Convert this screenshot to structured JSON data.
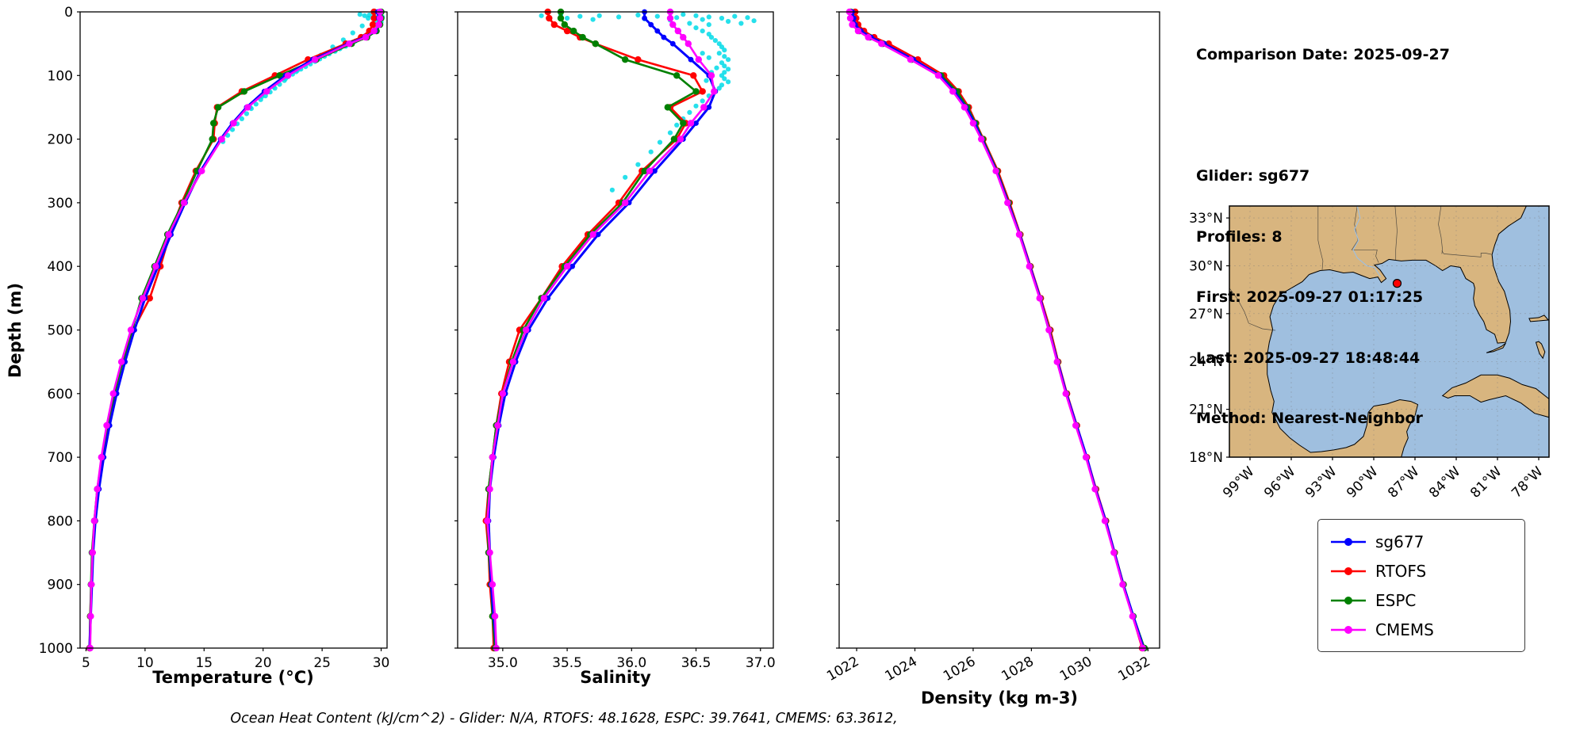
{
  "info_panel": {
    "lines": [
      "Comparison Date: 2025-09-27",
      "",
      "Glider: sg677",
      "Profiles: 8",
      "First: 2025-09-27 01:17:25",
      "Last: 2025-09-27 18:48:44",
      "Method: Nearest-Neighbor"
    ]
  },
  "caption": "Ocean Heat Content (kJ/cm^2) - Glider: N/A,  RTOFS: 48.1628,  ESPC: 39.7641,  CMEMS: 63.3612,",
  "ocean_heat_content": {
    "glider": "N/A",
    "RTOFS": 48.1628,
    "ESPC": 39.7641,
    "CMEMS": 63.3612
  },
  "legend": {
    "items": [
      {
        "label": "sg677",
        "color": "#0000ff"
      },
      {
        "label": "RTOFS",
        "color": "#ff0000"
      },
      {
        "label": "ESPC",
        "color": "#008000"
      },
      {
        "label": "CMEMS",
        "color": "#ff00ff"
      }
    ]
  },
  "depth_axis": {
    "label": "Depth (m)",
    "lim": [
      0,
      1000
    ],
    "ticks": [
      0,
      100,
      200,
      300,
      400,
      500,
      600,
      700,
      800,
      900,
      1000
    ]
  },
  "map": {
    "extent": {
      "lon": [
        -100.5,
        -77.25
      ],
      "lat": [
        18,
        33.75
      ]
    },
    "colors": {
      "land": "#d8b57f",
      "water": "#9fbfdf",
      "coast": "#000000",
      "border": "#333333",
      "river": "#9fbfdf"
    },
    "lat_ticks": [
      {
        "label": "33°N",
        "value": 33
      },
      {
        "label": "30°N",
        "value": 30
      },
      {
        "label": "27°N",
        "value": 27
      },
      {
        "label": "24°N",
        "value": 24
      },
      {
        "label": "21°N",
        "value": 21
      },
      {
        "label": "18°N",
        "value": 18
      }
    ],
    "lon_ticks": [
      {
        "label": "99°W",
        "value": -99
      },
      {
        "label": "96°W",
        "value": -96
      },
      {
        "label": "93°W",
        "value": -93
      },
      {
        "label": "90°W",
        "value": -90
      },
      {
        "label": "87°W",
        "value": -87
      },
      {
        "label": "84°W",
        "value": -84
      },
      {
        "label": "81°W",
        "value": -81
      },
      {
        "label": "78°W",
        "value": -78
      }
    ],
    "marker": {
      "lon": -88.3,
      "lat": 28.9,
      "color": "#ff0000"
    }
  },
  "chart_data": [
    {
      "type": "line",
      "xlabel": "Temperature (°C)",
      "xlim": [
        4.5,
        30.5
      ],
      "xticks": [
        5,
        10,
        15,
        20,
        25,
        30
      ],
      "xtick_labels": [
        "5",
        "10",
        "15",
        "20",
        "25",
        "30"
      ],
      "xtick_rotation": 0,
      "depth_lim": [
        0,
        1000
      ],
      "depths": [
        0,
        10,
        20,
        30,
        40,
        50,
        75,
        100,
        125,
        150,
        175,
        200,
        250,
        300,
        350,
        400,
        450,
        500,
        550,
        600,
        650,
        700,
        750,
        800,
        850,
        900,
        950,
        1000
      ],
      "series": [
        {
          "name": "sg677",
          "color": "#0000ff",
          "values": [
            29.7,
            29.8,
            29.8,
            29.5,
            28.6,
            27.2,
            24.2,
            21.9,
            20.1,
            18.6,
            17.4,
            16.4,
            14.7,
            13.4,
            12.2,
            11.1,
            10.0,
            9.1,
            8.3,
            7.6,
            7.0,
            6.5,
            6.1,
            5.8,
            5.6,
            5.5,
            5.4,
            5.3
          ]
        },
        {
          "name": "RTOFS",
          "color": "#ff0000",
          "values": [
            29.4,
            29.4,
            29.3,
            29.0,
            28.3,
            27.0,
            23.8,
            21.0,
            18.2,
            16.1,
            15.9,
            15.8,
            14.3,
            13.1,
            12.1,
            11.3,
            10.4,
            9.0,
            8.1,
            7.4,
            6.9,
            6.4,
            6.0,
            5.75,
            5.55,
            5.45,
            5.35,
            5.3
          ]
        },
        {
          "name": "ESPC",
          "color": "#008000",
          "values": [
            30.0,
            30.0,
            29.9,
            29.6,
            28.8,
            27.5,
            24.5,
            21.4,
            18.4,
            16.2,
            15.8,
            15.7,
            14.4,
            13.2,
            11.9,
            10.8,
            9.7,
            8.9,
            8.1,
            7.4,
            6.8,
            6.35,
            5.95,
            5.7,
            5.5,
            5.42,
            5.36,
            5.32
          ]
        },
        {
          "name": "CMEMS",
          "color": "#ff00ff",
          "values": [
            29.9,
            29.9,
            29.8,
            29.4,
            28.7,
            27.3,
            24.4,
            22.1,
            20.3,
            18.7,
            17.5,
            16.5,
            14.8,
            13.3,
            12.0,
            10.9,
            9.8,
            8.8,
            8.0,
            7.3,
            6.75,
            6.3,
            5.95,
            5.7,
            5.55,
            5.45,
            5.4,
            5.35
          ]
        }
      ],
      "scatter": {
        "name": "glider-raw",
        "color": "#00dbe8",
        "points": [
          [
            28.2,
            4
          ],
          [
            28.6,
            6
          ],
          [
            29.0,
            5
          ],
          [
            29.4,
            7
          ],
          [
            29.8,
            6
          ],
          [
            30.1,
            8
          ],
          [
            29.9,
            12
          ],
          [
            30.0,
            16
          ],
          [
            29.8,
            20
          ],
          [
            29.6,
            25
          ],
          [
            29.3,
            30
          ],
          [
            29.0,
            34
          ],
          [
            28.6,
            38
          ],
          [
            28.2,
            42
          ],
          [
            27.8,
            46
          ],
          [
            27.4,
            50
          ],
          [
            27.0,
            54
          ],
          [
            26.5,
            58
          ],
          [
            26.1,
            62
          ],
          [
            25.6,
            66
          ],
          [
            25.2,
            70
          ],
          [
            24.8,
            74
          ],
          [
            24.4,
            78
          ],
          [
            24.0,
            82
          ],
          [
            23.6,
            86
          ],
          [
            23.2,
            90
          ],
          [
            22.8,
            94
          ],
          [
            22.5,
            98
          ],
          [
            22.1,
            102
          ],
          [
            21.8,
            108
          ],
          [
            21.4,
            114
          ],
          [
            21.0,
            120
          ],
          [
            20.6,
            126
          ],
          [
            20.2,
            132
          ],
          [
            19.8,
            138
          ],
          [
            19.4,
            145
          ],
          [
            19.0,
            152
          ],
          [
            18.6,
            160
          ],
          [
            18.2,
            168
          ],
          [
            17.8,
            176
          ],
          [
            17.4,
            185
          ],
          [
            17.0,
            194
          ],
          [
            16.6,
            204
          ],
          [
            28.9,
            10
          ],
          [
            29.5,
            15
          ],
          [
            28.4,
            22
          ],
          [
            27.6,
            33
          ],
          [
            26.8,
            44
          ],
          [
            25.9,
            55
          ],
          [
            24.9,
            68
          ],
          [
            23.8,
            80
          ],
          [
            22.9,
            92
          ],
          [
            21.9,
            105
          ],
          [
            20.9,
            118
          ],
          [
            19.9,
            133
          ],
          [
            18.9,
            150
          ]
        ]
      }
    },
    {
      "type": "line",
      "xlabel": "Salinity",
      "xlim": [
        34.65,
        37.1
      ],
      "xticks": [
        35.0,
        35.5,
        36.0,
        36.5,
        37.0
      ],
      "xtick_labels": [
        "35.0",
        "35.5",
        "36.0",
        "36.5",
        "37.0"
      ],
      "xtick_rotation": 0,
      "depth_lim": [
        0,
        1000
      ],
      "depths": [
        0,
        10,
        20,
        30,
        40,
        50,
        75,
        100,
        125,
        150,
        175,
        200,
        250,
        300,
        350,
        400,
        450,
        500,
        550,
        600,
        650,
        700,
        750,
        800,
        850,
        900,
        950,
        1000
      ],
      "series": [
        {
          "name": "sg677",
          "color": "#0000ff",
          "values": [
            36.1,
            36.1,
            36.15,
            36.2,
            36.25,
            36.32,
            36.46,
            36.6,
            36.65,
            36.6,
            36.5,
            36.4,
            36.18,
            35.98,
            35.74,
            35.54,
            35.35,
            35.2,
            35.1,
            35.02,
            34.97,
            34.93,
            34.9,
            34.89,
            34.9,
            34.91,
            34.93,
            34.95
          ]
        },
        {
          "name": "RTOFS",
          "color": "#ff0000",
          "values": [
            35.35,
            35.36,
            35.4,
            35.5,
            35.6,
            35.72,
            36.05,
            36.48,
            36.55,
            36.3,
            36.42,
            36.35,
            36.08,
            35.9,
            35.66,
            35.46,
            35.3,
            35.13,
            35.05,
            34.99,
            34.95,
            34.92,
            34.89,
            34.87,
            34.89,
            34.9,
            34.92,
            34.93
          ]
        },
        {
          "name": "ESPC",
          "color": "#008000",
          "values": [
            35.45,
            35.45,
            35.48,
            35.55,
            35.62,
            35.72,
            35.95,
            36.35,
            36.5,
            36.28,
            36.4,
            36.33,
            36.1,
            35.93,
            35.68,
            35.48,
            35.3,
            35.16,
            35.07,
            35.0,
            34.95,
            34.92,
            34.89,
            34.88,
            34.89,
            34.91,
            34.92,
            34.94
          ]
        },
        {
          "name": "CMEMS",
          "color": "#ff00ff",
          "values": [
            36.3,
            36.3,
            36.32,
            36.36,
            36.4,
            36.44,
            36.52,
            36.62,
            36.64,
            36.56,
            36.46,
            36.38,
            36.14,
            35.95,
            35.7,
            35.5,
            35.32,
            35.18,
            35.08,
            35.0,
            34.96,
            34.92,
            34.9,
            34.88,
            34.9,
            34.92,
            34.94,
            34.95
          ]
        }
      ],
      "scatter": {
        "name": "glider-raw",
        "color": "#00dbe8",
        "points": [
          [
            35.3,
            6
          ],
          [
            35.45,
            5
          ],
          [
            35.6,
            7
          ],
          [
            35.75,
            6
          ],
          [
            35.9,
            8
          ],
          [
            36.05,
            5
          ],
          [
            36.2,
            7
          ],
          [
            36.35,
            9
          ],
          [
            36.5,
            6
          ],
          [
            36.6,
            8
          ],
          [
            36.7,
            10
          ],
          [
            36.8,
            7
          ],
          [
            36.9,
            9
          ],
          [
            36.95,
            14
          ],
          [
            36.4,
            4
          ],
          [
            35.5,
            10
          ],
          [
            35.7,
            12
          ],
          [
            36.1,
            11
          ],
          [
            36.3,
            13
          ],
          [
            36.55,
            12
          ],
          [
            36.75,
            15
          ],
          [
            36.85,
            18
          ],
          [
            36.6,
            20
          ],
          [
            36.45,
            18
          ],
          [
            36.5,
            25
          ],
          [
            36.55,
            30
          ],
          [
            36.6,
            35
          ],
          [
            36.62,
            40
          ],
          [
            36.65,
            45
          ],
          [
            36.68,
            50
          ],
          [
            36.7,
            55
          ],
          [
            36.72,
            60
          ],
          [
            36.68,
            65
          ],
          [
            36.72,
            70
          ],
          [
            36.75,
            75
          ],
          [
            36.7,
            80
          ],
          [
            36.72,
            85
          ],
          [
            36.75,
            90
          ],
          [
            36.72,
            95
          ],
          [
            36.7,
            100
          ],
          [
            36.72,
            105
          ],
          [
            36.75,
            110
          ],
          [
            36.7,
            115
          ],
          [
            36.68,
            120
          ],
          [
            36.65,
            125
          ],
          [
            36.6,
            132
          ],
          [
            36.55,
            140
          ],
          [
            36.5,
            148
          ],
          [
            36.45,
            158
          ],
          [
            36.4,
            168
          ],
          [
            36.35,
            178
          ],
          [
            36.3,
            190
          ],
          [
            36.22,
            205
          ],
          [
            36.15,
            220
          ],
          [
            36.05,
            240
          ],
          [
            35.95,
            260
          ],
          [
            35.85,
            280
          ],
          [
            36.55,
            65
          ],
          [
            36.6,
            72
          ],
          [
            36.62,
            95
          ],
          [
            36.58,
            108
          ],
          [
            36.66,
            88
          ]
        ]
      }
    },
    {
      "type": "line",
      "xlabel": "Density (kg m-3)",
      "xlim": [
        1021.4,
        1032.4
      ],
      "xticks": [
        1022,
        1024,
        1026,
        1028,
        1030,
        1032
      ],
      "xtick_labels": [
        "1022",
        "1024",
        "1026",
        "1028",
        "1030",
        "1032"
      ],
      "xtick_rotation": 30,
      "depth_lim": [
        0,
        1000
      ],
      "depths": [
        0,
        10,
        20,
        30,
        40,
        50,
        75,
        100,
        125,
        150,
        175,
        200,
        250,
        300,
        350,
        400,
        450,
        500,
        550,
        600,
        650,
        700,
        750,
        800,
        850,
        900,
        950,
        1000
      ],
      "series": [
        {
          "name": "sg677",
          "color": "#0000ff",
          "values": [
            1021.85,
            1021.9,
            1021.95,
            1022.15,
            1022.5,
            1022.95,
            1023.95,
            1024.85,
            1025.35,
            1025.75,
            1026.05,
            1026.3,
            1026.8,
            1027.2,
            1027.6,
            1027.95,
            1028.3,
            1028.6,
            1028.9,
            1029.2,
            1029.55,
            1029.9,
            1030.2,
            1030.55,
            1030.85,
            1031.15,
            1031.5,
            1031.85
          ]
        },
        {
          "name": "RTOFS",
          "color": "#ff0000",
          "values": [
            1021.95,
            1021.98,
            1022.05,
            1022.25,
            1022.6,
            1023.1,
            1024.1,
            1025.0,
            1025.5,
            1025.85,
            1026.1,
            1026.35,
            1026.85,
            1027.25,
            1027.62,
            1027.97,
            1028.32,
            1028.65,
            1028.92,
            1029.22,
            1029.56,
            1029.9,
            1030.22,
            1030.56,
            1030.86,
            1031.16,
            1031.48,
            1031.8
          ]
        },
        {
          "name": "ESPC",
          "color": "#008000",
          "values": [
            1021.8,
            1021.82,
            1021.9,
            1022.1,
            1022.45,
            1022.9,
            1023.9,
            1024.9,
            1025.45,
            1025.8,
            1026.08,
            1026.33,
            1026.82,
            1027.22,
            1027.6,
            1027.95,
            1028.3,
            1028.62,
            1028.9,
            1029.2,
            1029.54,
            1029.88,
            1030.2,
            1030.54,
            1030.85,
            1031.16,
            1031.5,
            1031.88
          ]
        },
        {
          "name": "CMEMS",
          "color": "#ff00ff",
          "values": [
            1021.75,
            1021.78,
            1021.85,
            1022.05,
            1022.4,
            1022.85,
            1023.85,
            1024.8,
            1025.3,
            1025.7,
            1026.0,
            1026.28,
            1026.78,
            1027.18,
            1027.58,
            1027.93,
            1028.28,
            1028.6,
            1028.88,
            1029.18,
            1029.52,
            1029.87,
            1030.18,
            1030.52,
            1030.83,
            1031.13,
            1031.47,
            1031.82
          ]
        }
      ],
      "scatter": null
    }
  ]
}
